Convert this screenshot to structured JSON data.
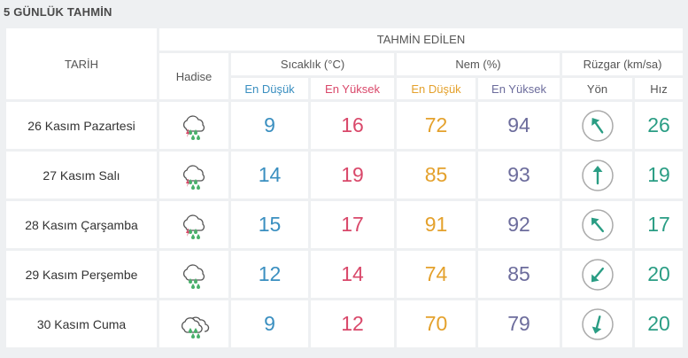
{
  "title": "5 GÜNLÜK TAHMİN",
  "headers": {
    "tarih": "TARİH",
    "tahmin": "TAHMİN EDİLEN",
    "hadise": "Hadise",
    "sicaklik": "Sıcaklık (°C)",
    "nem": "Nem (%)",
    "ruzgar": "Rüzgar (km/sa)",
    "temp_low": "En Düşük",
    "temp_high": "En Yüksek",
    "hum_low": "En Düşük",
    "hum_high": "En Yüksek",
    "yon": "Yön",
    "hiz": "Hız"
  },
  "colors": {
    "blue": "#3a8fc0",
    "red": "#d9486a",
    "orange": "#e4a12c",
    "purple": "#6c6c9c",
    "teal": "#2a9d84"
  },
  "rows": [
    {
      "date": "26 Kasım Pazartesi",
      "icon": "thunder-rain-cloud-icon",
      "temp_low": "9",
      "temp_high": "16",
      "hum_low": "72",
      "hum_high": "94",
      "wind_dir_deg": -35,
      "wind_speed": "26"
    },
    {
      "date": "27 Kasım Salı",
      "icon": "thunder-rain-cloud-icon",
      "temp_low": "14",
      "temp_high": "19",
      "hum_low": "85",
      "hum_high": "93",
      "wind_dir_deg": 0,
      "wind_speed": "19"
    },
    {
      "date": "28 Kasım Çarşamba",
      "icon": "thunder-rain-cloud-icon",
      "temp_low": "15",
      "temp_high": "17",
      "hum_low": "91",
      "hum_high": "92",
      "wind_dir_deg": -40,
      "wind_speed": "17"
    },
    {
      "date": "29 Kasım Perşembe",
      "icon": "rain-cloud-icon",
      "temp_low": "12",
      "temp_high": "14",
      "hum_low": "74",
      "hum_high": "85",
      "wind_dir_deg": -140,
      "wind_speed": "20"
    },
    {
      "date": "30 Kasım Cuma",
      "icon": "rain-double-cloud-icon",
      "temp_low": "9",
      "temp_high": "12",
      "hum_low": "70",
      "hum_high": "79",
      "wind_dir_deg": -165,
      "wind_speed": "20"
    }
  ]
}
